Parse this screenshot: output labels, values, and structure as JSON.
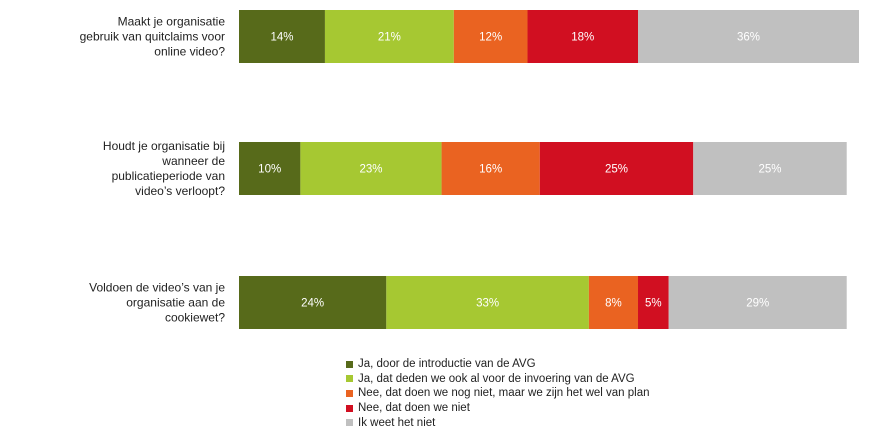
{
  "chart_data": {
    "type": "bar",
    "orientation": "horizontal",
    "stacked": true,
    "percent": true,
    "categories": [
      [
        "Maakt je organisatie",
        "gebruik van quitclaims voor",
        "online video?"
      ],
      [
        "Houdt je organisatie bij",
        "wanneer de",
        "publicatieperiode van",
        "video’s verloopt?"
      ],
      [
        "Voldoen de video’s van je",
        "organisatie aan de",
        "cookiewet?"
      ]
    ],
    "series": [
      {
        "name": "Ja, door de introductie van de AVG",
        "color": "#576a1a",
        "values": [
          14,
          10,
          24
        ],
        "labels": [
          "14%",
          "10%",
          "24%"
        ]
      },
      {
        "name": "Ja, dat deden we ook al voor de invoering van de AVG",
        "color": "#a6c832",
        "values": [
          21,
          23,
          33
        ],
        "labels": [
          "21%",
          "23%",
          "33%"
        ]
      },
      {
        "name": "Nee, dat doen we nog niet, maar we zijn het wel van plan",
        "color": "#ea6321",
        "values": [
          12,
          16,
          8
        ],
        "labels": [
          "12%",
          "16%",
          "8%"
        ]
      },
      {
        "name": "Nee, dat doen we niet",
        "color": "#d10f21",
        "values": [
          18,
          25,
          5
        ],
        "labels": [
          "18%",
          "25%",
          "5%"
        ]
      },
      {
        "name": "Ik weet het niet",
        "color": "#c0c0c0",
        "values": [
          36,
          25,
          29
        ],
        "labels": [
          "36%",
          "25%",
          "29%"
        ]
      }
    ],
    "xlim": [
      0,
      101
    ],
    "grid": false,
    "legend_position": "bottom"
  }
}
